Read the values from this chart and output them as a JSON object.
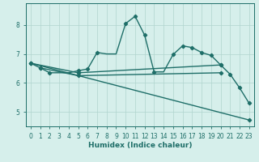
{
  "xlabel": "Humidex (Indice chaleur)",
  "ylabel": "",
  "xlim": [
    -0.5,
    23.5
  ],
  "ylim": [
    4.5,
    8.75
  ],
  "x_ticks": [
    0,
    1,
    2,
    3,
    4,
    5,
    6,
    7,
    8,
    9,
    10,
    11,
    12,
    13,
    14,
    15,
    16,
    17,
    18,
    19,
    20,
    21,
    22,
    23
  ],
  "y_ticks": [
    5,
    6,
    7,
    8
  ],
  "background_color": "#d6efeb",
  "grid_color": "#b0d4ce",
  "line_color": "#1e6e68",
  "line1_x": [
    0,
    1,
    2,
    3,
    4,
    5,
    6,
    7,
    8,
    9,
    10,
    11,
    12,
    13,
    14,
    15,
    16,
    17,
    18,
    19,
    20,
    21,
    22,
    23
  ],
  "line1_y": [
    6.68,
    6.52,
    6.35,
    6.35,
    6.35,
    6.42,
    6.48,
    7.05,
    7.0,
    7.0,
    8.05,
    8.3,
    7.65,
    6.38,
    6.38,
    6.98,
    7.28,
    7.22,
    7.05,
    6.95,
    6.62,
    6.3,
    5.83,
    5.3
  ],
  "line1_markers_x": [
    0,
    1,
    2,
    5,
    6,
    7,
    10,
    11,
    12,
    13,
    15,
    16,
    17,
    18,
    19,
    20,
    21,
    22,
    23
  ],
  "line1_markers_y": [
    6.68,
    6.52,
    6.35,
    6.42,
    6.48,
    7.05,
    8.05,
    8.3,
    7.65,
    6.38,
    6.98,
    7.28,
    7.22,
    7.05,
    6.95,
    6.62,
    6.3,
    5.83,
    5.3
  ],
  "line2_x": [
    0,
    5,
    20
  ],
  "line2_y": [
    6.68,
    6.35,
    6.62
  ],
  "line3_x": [
    1,
    5,
    20
  ],
  "line3_y": [
    6.52,
    6.25,
    6.35
  ],
  "line4_x": [
    0,
    23
  ],
  "line4_y": [
    6.68,
    4.72
  ]
}
